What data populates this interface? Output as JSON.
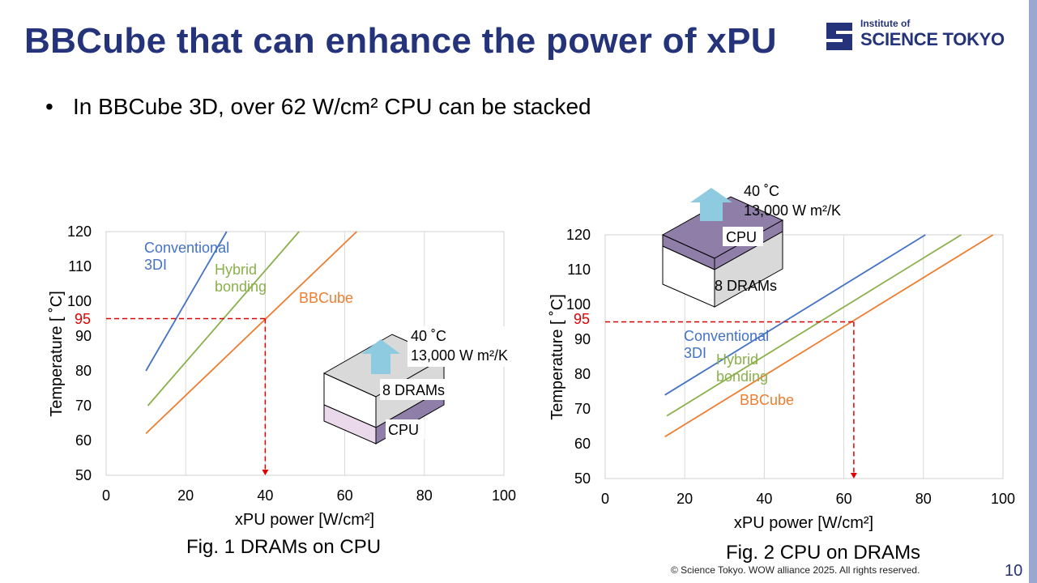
{
  "slide": {
    "title": "BBCube that can enhance the power of xPU",
    "logo_small": "Institute of",
    "logo_big": "SCIENCE TOKYO",
    "bullet_dot": "•",
    "bullet_text": "In BBCube 3D, over 62 W/cm² CPU can be stacked",
    "copyright": "© Science Tokyo. WOW alliance 2025. All rights reserved.",
    "page_number": "10"
  },
  "colors": {
    "title": "#24337a",
    "conventional": "#4472c4",
    "hybrid": "#8bb04d",
    "bbcube": "#ed7d31",
    "threshold": "#e00000",
    "arrow": "#8ecbe0",
    "cpu_layer": "#8e7ea8",
    "dram_layer": "#d9d9d9"
  },
  "chart_data": [
    {
      "type": "line",
      "caption": "Fig. 1 DRAMs on CPU",
      "xlabel": "xPU power [W/cm²]",
      "ylabel": "Temperature [ ˚C]",
      "xlim": [
        0,
        100
      ],
      "ylim": [
        50,
        120
      ],
      "x_ticks": [
        "0",
        "20",
        "40",
        "60",
        "80",
        "100"
      ],
      "y_ticks": [
        "50",
        "60",
        "70",
        "80",
        "90",
        "100",
        "110",
        "120"
      ],
      "series": [
        {
          "name": "Conventional 3DI",
          "label_lines": [
            "Conventional",
            "3DI"
          ],
          "x": [
            10,
            30.3
          ],
          "y": [
            80,
            120
          ]
        },
        {
          "name": "Hybrid bonding",
          "label_lines": [
            "Hybrid",
            "bonding"
          ],
          "x": [
            10.5,
            48.5
          ],
          "y": [
            70,
            120
          ]
        },
        {
          "name": "BBCube",
          "label_lines": [
            "BBCube"
          ],
          "x": [
            10,
            63
          ],
          "y": [
            62,
            120
          ]
        }
      ],
      "threshold": {
        "label": "95",
        "y": 95,
        "x": 40
      },
      "inset": {
        "temp": "40 ˚C",
        "htc": "13,000 W m²/K",
        "top_layer": "8 DRAMs",
        "bottom_layer": "CPU"
      }
    },
    {
      "type": "line",
      "caption": "Fig. 2 CPU on DRAMs",
      "xlabel": "xPU power [W/cm²]",
      "ylabel": "Temperature [ ˚C]",
      "xlim": [
        0,
        100
      ],
      "ylim": [
        50,
        120
      ],
      "x_ticks": [
        "0",
        "20",
        "40",
        "60",
        "80",
        "100"
      ],
      "y_ticks": [
        "50",
        "60",
        "70",
        "80",
        "90",
        "100",
        "110",
        "120"
      ],
      "series": [
        {
          "name": "Conventional 3DI",
          "label_lines": [
            "Conventional",
            "3DI"
          ],
          "x": [
            15,
            80.5
          ],
          "y": [
            74,
            120
          ]
        },
        {
          "name": "Hybrid bonding",
          "label_lines": [
            "Hybrid",
            "bonding"
          ],
          "x": [
            15.5,
            89.5
          ],
          "y": [
            68,
            120
          ]
        },
        {
          "name": "BBCube",
          "label_lines": [
            "BBCube"
          ],
          "x": [
            15,
            97.5
          ],
          "y": [
            62,
            120
          ]
        }
      ],
      "threshold": {
        "label": "95",
        "y": 95,
        "x": 62.5
      },
      "inset": {
        "temp": "40 ˚C",
        "htc": "13,000 W m²/K",
        "top_layer": "CPU",
        "bottom_layer": "8 DRAMs"
      }
    }
  ]
}
